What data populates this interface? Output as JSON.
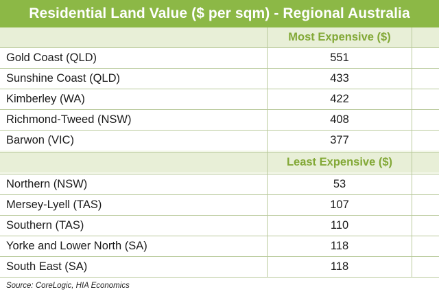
{
  "chart_data": {
    "type": "table",
    "title": "Residential Land Value ($ per sqm) - Regional Australia",
    "sections": [
      {
        "label": "Most Expensive ($)",
        "rows": [
          {
            "name": "Gold Coast (QLD)",
            "value": "551"
          },
          {
            "name": "Sunshine Coast (QLD)",
            "value": "433"
          },
          {
            "name": "Kimberley (WA)",
            "value": "422"
          },
          {
            "name": "Richmond-Tweed (NSW)",
            "value": "408"
          },
          {
            "name": "Barwon (VIC)",
            "value": "377"
          }
        ]
      },
      {
        "label": "Least Expensive ($)",
        "rows": [
          {
            "name": "Northern (NSW)",
            "value": "53"
          },
          {
            "name": "Mersey-Lyell (TAS)",
            "value": "107"
          },
          {
            "name": "Southern (TAS)",
            "value": "110"
          },
          {
            "name": "Yorke and Lower North (SA)",
            "value": "118"
          },
          {
            "name": "South East (SA)",
            "value": "118"
          }
        ]
      }
    ],
    "source": "Source: CoreLogic, HIA Economics"
  },
  "colors": {
    "title_background": "#8cb846",
    "section_label": "#82a836",
    "band_background": "#e8efd7",
    "row_background": "#ffffff",
    "grid_line": "#b8c99a"
  }
}
